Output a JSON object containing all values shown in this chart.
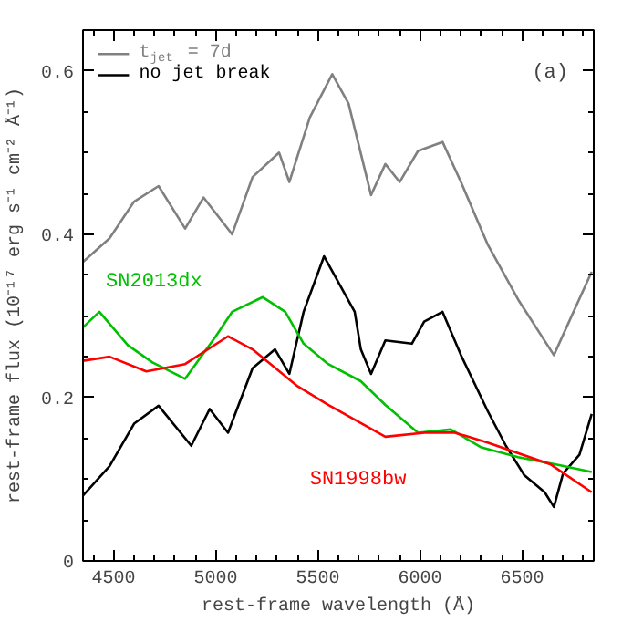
{
  "chart_data": {
    "type": "line",
    "xlabel": "rest-frame wavelength (Å)",
    "ylabel": "rest-frame flux (10⁻¹⁷ erg s⁻¹ cm⁻² Å⁻¹)",
    "xlim": [
      4350,
      6850
    ],
    "ylim": [
      0,
      0.65
    ],
    "xticks": [
      4500,
      5000,
      5500,
      6000,
      6500
    ],
    "yticks": [
      0,
      0.2,
      0.4,
      0.6
    ],
    "grid": false,
    "legend": "top left",
    "marker": "none",
    "line_style": "solid",
    "annotations": [
      "(a)"
    ],
    "series": [
      {
        "name": "t$_{jet}$ = 7d",
        "color": "#808080",
        "x": [
          4350,
          4480,
          4600,
          4720,
          4850,
          4940,
          5080,
          5180,
          5310,
          5360,
          5460,
          5570,
          5650,
          5760,
          5830,
          5900,
          5990,
          6110,
          6200,
          6330,
          6480,
          6655,
          6840
        ],
        "values": [
          0.366,
          0.395,
          0.44,
          0.459,
          0.407,
          0.445,
          0.4,
          0.47,
          0.5,
          0.464,
          0.543,
          0.596,
          0.56,
          0.448,
          0.486,
          0.464,
          0.502,
          0.513,
          0.464,
          0.388,
          0.32,
          0.252,
          0.354
        ]
      },
      {
        "name": "no jet break",
        "color": "#000000",
        "x": [
          4350,
          4480,
          4600,
          4720,
          4880,
          4970,
          5060,
          5180,
          5290,
          5360,
          5430,
          5530,
          5680,
          5710,
          5760,
          5830,
          5960,
          6020,
          6110,
          6200,
          6330,
          6420,
          6510,
          6610,
          6655,
          6700,
          6780,
          6840
        ],
        "values": [
          0.08,
          0.116,
          0.168,
          0.19,
          0.141,
          0.186,
          0.157,
          0.236,
          0.259,
          0.229,
          0.305,
          0.373,
          0.305,
          0.259,
          0.229,
          0.27,
          0.266,
          0.293,
          0.305,
          0.252,
          0.184,
          0.141,
          0.105,
          0.084,
          0.066,
          0.107,
          0.13,
          0.18
        ]
      },
      {
        "name": "SN2013dx",
        "color": "#00c000",
        "x": [
          4350,
          4430,
          4570,
          4690,
          4850,
          5000,
          5080,
          5230,
          5340,
          5430,
          5550,
          5710,
          5830,
          5990,
          6150,
          6300,
          6480,
          6665,
          6840
        ],
        "values": [
          0.286,
          0.305,
          0.264,
          0.243,
          0.223,
          0.275,
          0.305,
          0.323,
          0.305,
          0.266,
          0.241,
          0.22,
          0.191,
          0.157,
          0.161,
          0.139,
          0.127,
          0.118,
          0.109
        ]
      },
      {
        "name": "SN1998bw",
        "color": "#ff0000",
        "x": [
          4350,
          4480,
          4660,
          4850,
          5060,
          5180,
          5400,
          5550,
          5830,
          6020,
          6170,
          6330,
          6640,
          6840
        ],
        "values": [
          0.245,
          0.25,
          0.232,
          0.241,
          0.275,
          0.259,
          0.214,
          0.191,
          0.152,
          0.157,
          0.157,
          0.145,
          0.118,
          0.084
        ]
      }
    ]
  }
}
